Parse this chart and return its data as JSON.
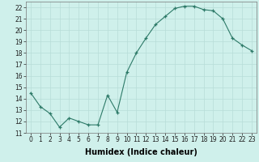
{
  "x": [
    0,
    1,
    2,
    3,
    4,
    5,
    6,
    7,
    8,
    9,
    10,
    11,
    12,
    13,
    14,
    15,
    16,
    17,
    18,
    19,
    20,
    21,
    22,
    23
  ],
  "y": [
    14.5,
    13.3,
    12.7,
    11.5,
    12.3,
    12.0,
    11.7,
    11.7,
    14.3,
    12.8,
    16.3,
    18.0,
    19.3,
    20.5,
    21.2,
    21.9,
    22.1,
    22.1,
    21.8,
    21.7,
    21.0,
    19.3,
    18.7,
    18.2
  ],
  "xlabel": "Humidex (Indice chaleur)",
  "ylim": [
    11,
    22.5
  ],
  "xlim": [
    -0.5,
    23.5
  ],
  "yticks": [
    11,
    12,
    13,
    14,
    15,
    16,
    17,
    18,
    19,
    20,
    21,
    22
  ],
  "xticks": [
    0,
    1,
    2,
    3,
    4,
    5,
    6,
    7,
    8,
    9,
    10,
    11,
    12,
    13,
    14,
    15,
    16,
    17,
    18,
    19,
    20,
    21,
    22,
    23
  ],
  "line_color": "#2d7a68",
  "bg_color": "#cff0eb",
  "grid_color": "#b8ddd8",
  "xlabel_fontsize": 7,
  "tick_fontsize": 5.5
}
